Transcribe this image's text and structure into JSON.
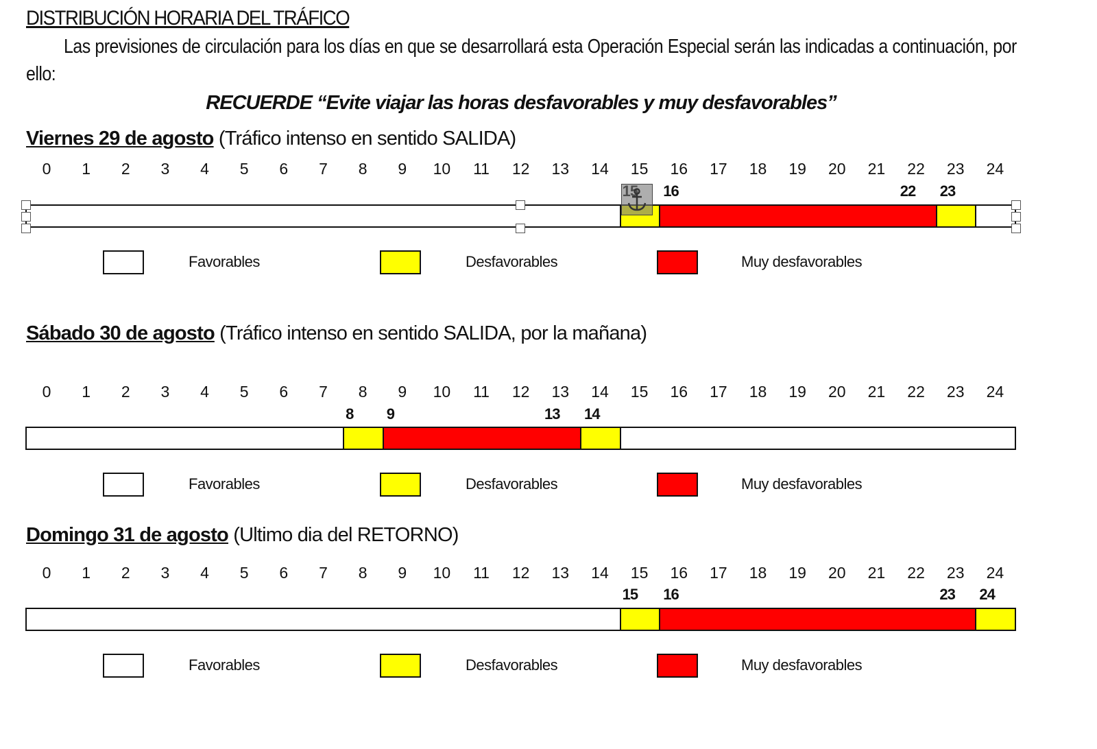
{
  "title": "DISTRIBUCIÓN HORARIA DEL TRÁFICO",
  "intro": "Las previsiones de circulación para los días en que se desarrollará esta Operación Especial serán las indicadas a continuación, por ello:",
  "reminder": "RECUERDE “Evite viajar las horas desfavorables y muy desfavorables”",
  "hours": [
    "0",
    "1",
    "2",
    "3",
    "4",
    "5",
    "6",
    "7",
    "8",
    "9",
    "10",
    "11",
    "12",
    "13",
    "14",
    "15",
    "16",
    "17",
    "18",
    "19",
    "20",
    "21",
    "22",
    "23",
    "24"
  ],
  "colors": {
    "favorable": "#ffffff",
    "desfavorable": "#ffff00",
    "muy_desfavorable": "#ff0000"
  },
  "legend": {
    "favorable": "Favorables",
    "desfavorable": "Desfavorables",
    "muy_desfavorable": "Muy desfavorables"
  },
  "days": [
    {
      "date": "Viernes 29 de agosto",
      "note": "(Tráfico intenso en sentido SALIDA)",
      "marks": [
        "15",
        "16",
        "22",
        "23"
      ],
      "segments": [
        {
          "from": 15,
          "to": 16,
          "level": "desfavorable"
        },
        {
          "from": 16,
          "to": 23,
          "level": "muy_desfavorable"
        },
        {
          "from": 23,
          "to": 24,
          "level": "desfavorable"
        }
      ]
    },
    {
      "date": "Sábado 30 de agosto",
      "note": "(Tráfico intenso en sentido SALIDA, por la mañana)",
      "marks": [
        "8",
        "9",
        "13",
        "14"
      ],
      "segments": [
        {
          "from": 8,
          "to": 9,
          "level": "desfavorable"
        },
        {
          "from": 9,
          "to": 14,
          "level": "muy_desfavorable"
        },
        {
          "from": 14,
          "to": 15,
          "level": "desfavorable"
        }
      ]
    },
    {
      "date": "Domingo 31 de agosto",
      "note": "(Ultimo dia del RETORNO)",
      "marks": [
        "15",
        "16",
        "23",
        "24"
      ],
      "segments": [
        {
          "from": 15,
          "to": 16,
          "level": "desfavorable"
        },
        {
          "from": 16,
          "to": 24,
          "level": "muy_desfavorable"
        },
        {
          "from": 24,
          "to": 25,
          "level": "desfavorable"
        }
      ]
    }
  ],
  "anchor_icon": "anchor-icon"
}
